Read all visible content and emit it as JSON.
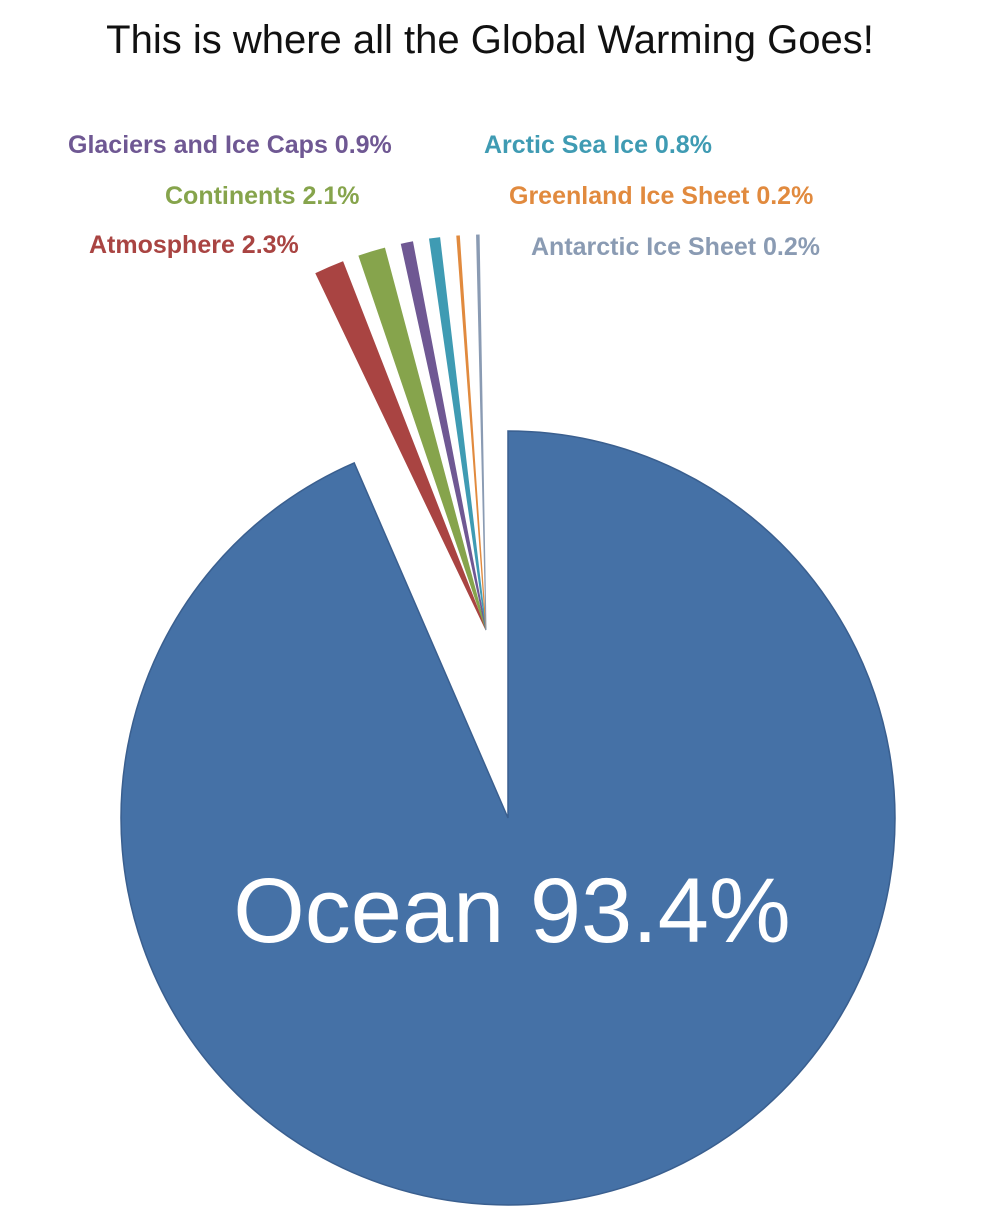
{
  "chart_data": {
    "type": "pie",
    "title": "This is where all the Global Warming Goes!",
    "slices": [
      {
        "name": "Ocean",
        "value": 93.4,
        "label": "Ocean 93.4%",
        "color": "#4571a6"
      },
      {
        "name": "Atmosphere",
        "value": 2.3,
        "label": "Atmosphere 2.3%",
        "color": "#a94442"
      },
      {
        "name": "Continents",
        "value": 2.1,
        "label": "Continents 2.1%",
        "color": "#86a44c"
      },
      {
        "name": "Glaciers and Ice Caps",
        "value": 0.9,
        "label": "Glaciers and Ice Caps 0.9%",
        "color": "#6f5893"
      },
      {
        "name": "Arctic Sea Ice",
        "value": 0.8,
        "label": "Arctic Sea Ice 0.8%",
        "color": "#3f9bb3"
      },
      {
        "name": "Greenland Ice Sheet",
        "value": 0.2,
        "label": "Greenland Ice Sheet 0.2%",
        "color": "#e18a3e"
      },
      {
        "name": "Antarctic Ice Sheet",
        "value": 0.2,
        "label": "Antarctic Ice Sheet 0.2%",
        "color": "#8a9bb3"
      }
    ]
  }
}
